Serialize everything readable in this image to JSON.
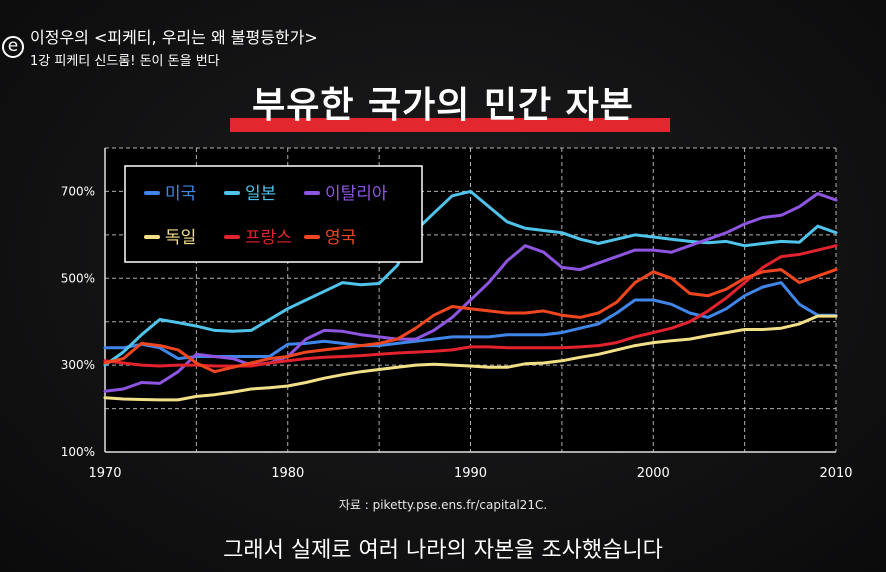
{
  "header": {
    "logo": "e",
    "series_title": "이정우의 <피케티, 우리는 왜 불평등한가>",
    "episode": "1강 피케티 신드롬! 돈이 돈을 번다"
  },
  "main_title": "부유한 국가의 민간 자본",
  "source": "자료 : piketty.pse.ens.fr/capital21C.",
  "caption": "그래서 실제로 여러 나라의 자본을 조사했습니다",
  "chart_data": {
    "type": "line",
    "title": "부유한 국가의 민간 자본",
    "xlabel": "",
    "ylabel": "",
    "xlim": [
      1970,
      2010
    ],
    "ylim": [
      100,
      800
    ],
    "x_ticks": [
      1970,
      1980,
      1990,
      2000,
      2010
    ],
    "y_ticks": [
      100,
      300,
      500,
      700
    ],
    "y_tick_labels": [
      "100%",
      "300%",
      "500%",
      "700%"
    ],
    "grid": true,
    "legend_position": "top-left",
    "series": [
      {
        "name": "미국",
        "color": "#3f86e8",
        "x": [
          1970,
          1971,
          1972,
          1973,
          1974,
          1975,
          1976,
          1977,
          1978,
          1979,
          1980,
          1981,
          1982,
          1983,
          1984,
          1985,
          1986,
          1987,
          1988,
          1989,
          1990,
          1991,
          1992,
          1993,
          1994,
          1995,
          1996,
          1997,
          1998,
          1999,
          2000,
          2001,
          2002,
          2003,
          2004,
          2005,
          2006,
          2007,
          2008,
          2009,
          2010
        ],
        "values": [
          340,
          340,
          348,
          340,
          315,
          320,
          320,
          320,
          320,
          320,
          348,
          350,
          355,
          350,
          345,
          345,
          350,
          355,
          360,
          365,
          365,
          365,
          370,
          370,
          370,
          375,
          385,
          395,
          420,
          450,
          450,
          440,
          420,
          410,
          430,
          460,
          480,
          490,
          440,
          415,
          415
        ]
      },
      {
        "name": "일본",
        "color": "#4fc3ea",
        "x": [
          1970,
          1971,
          1972,
          1973,
          1974,
          1975,
          1976,
          1977,
          1978,
          1979,
          1980,
          1981,
          1982,
          1983,
          1984,
          1985,
          1986,
          1987,
          1988,
          1989,
          1990,
          1991,
          1992,
          1993,
          1994,
          1995,
          1996,
          1997,
          1998,
          1999,
          2000,
          2001,
          2002,
          2003,
          2004,
          2005,
          2006,
          2007,
          2008,
          2009,
          2010
        ],
        "values": [
          300,
          330,
          370,
          405,
          398,
          390,
          380,
          378,
          380,
          405,
          430,
          450,
          470,
          490,
          485,
          488,
          530,
          610,
          650,
          690,
          700,
          665,
          630,
          615,
          610,
          605,
          590,
          580,
          590,
          600,
          595,
          590,
          585,
          582,
          585,
          575,
          580,
          585,
          583,
          620,
          605
        ]
      },
      {
        "name": "이탈리아",
        "color": "#8e55e0",
        "x": [
          1970,
          1971,
          1972,
          1973,
          1974,
          1975,
          1976,
          1977,
          1978,
          1979,
          1980,
          1981,
          1982,
          1983,
          1984,
          1985,
          1986,
          1987,
          1988,
          1989,
          1990,
          1991,
          1992,
          1993,
          1994,
          1995,
          1996,
          1997,
          1998,
          1999,
          2000,
          2001,
          2002,
          2003,
          2004,
          2005,
          2006,
          2007,
          2008,
          2009,
          2010
        ],
        "values": [
          240,
          245,
          260,
          258,
          285,
          325,
          320,
          315,
          300,
          305,
          320,
          360,
          380,
          378,
          370,
          365,
          360,
          360,
          380,
          410,
          450,
          490,
          540,
          575,
          560,
          525,
          520,
          535,
          550,
          565,
          565,
          560,
          575,
          590,
          605,
          625,
          640,
          645,
          665,
          695,
          680
        ]
      },
      {
        "name": "독일",
        "color": "#f2e088",
        "x": [
          1970,
          1971,
          1972,
          1973,
          1974,
          1975,
          1976,
          1977,
          1978,
          1979,
          1980,
          1981,
          1982,
          1983,
          1984,
          1985,
          1986,
          1987,
          1988,
          1989,
          1990,
          1991,
          1992,
          1993,
          1994,
          1995,
          1996,
          1997,
          1998,
          1999,
          2000,
          2001,
          2002,
          2003,
          2004,
          2005,
          2006,
          2007,
          2008,
          2009,
          2010
        ],
        "values": [
          225,
          222,
          221,
          220,
          220,
          228,
          232,
          238,
          245,
          248,
          252,
          260,
          270,
          278,
          285,
          290,
          295,
          300,
          302,
          300,
          298,
          295,
          295,
          303,
          305,
          310,
          318,
          325,
          335,
          345,
          352,
          356,
          360,
          368,
          375,
          382,
          382,
          385,
          395,
          413,
          413
        ]
      },
      {
        "name": "프랑스",
        "color": "#e2222d",
        "x": [
          1970,
          1971,
          1972,
          1973,
          1974,
          1975,
          1976,
          1977,
          1978,
          1979,
          1980,
          1981,
          1982,
          1983,
          1984,
          1985,
          1986,
          1987,
          1988,
          1989,
          1990,
          1991,
          1992,
          1993,
          1994,
          1995,
          1996,
          1997,
          1998,
          1999,
          2000,
          2001,
          2002,
          2003,
          2004,
          2005,
          2006,
          2007,
          2008,
          2009,
          2010
        ],
        "values": [
          310,
          305,
          300,
          298,
          300,
          300,
          298,
          298,
          298,
          305,
          310,
          315,
          318,
          320,
          322,
          325,
          328,
          330,
          332,
          335,
          342,
          342,
          340,
          340,
          340,
          340,
          342,
          345,
          352,
          365,
          375,
          385,
          400,
          425,
          455,
          490,
          525,
          550,
          555,
          565,
          575
        ]
      },
      {
        "name": "영국",
        "color": "#f0461f",
        "x": [
          1970,
          1971,
          1972,
          1973,
          1974,
          1975,
          1976,
          1977,
          1978,
          1979,
          1980,
          1981,
          1982,
          1983,
          1984,
          1985,
          1986,
          1987,
          1988,
          1989,
          1990,
          1991,
          1992,
          1993,
          1994,
          1995,
          1996,
          1997,
          1998,
          1999,
          2000,
          2001,
          2002,
          2003,
          2004,
          2005,
          2006,
          2007,
          2008,
          2009,
          2010
        ],
        "values": [
          305,
          315,
          350,
          345,
          335,
          305,
          285,
          295,
          305,
          315,
          320,
          330,
          335,
          340,
          345,
          350,
          360,
          385,
          415,
          435,
          430,
          425,
          420,
          420,
          425,
          415,
          410,
          420,
          445,
          490,
          515,
          500,
          465,
          460,
          475,
          500,
          515,
          520,
          490,
          505,
          520
        ]
      }
    ]
  }
}
